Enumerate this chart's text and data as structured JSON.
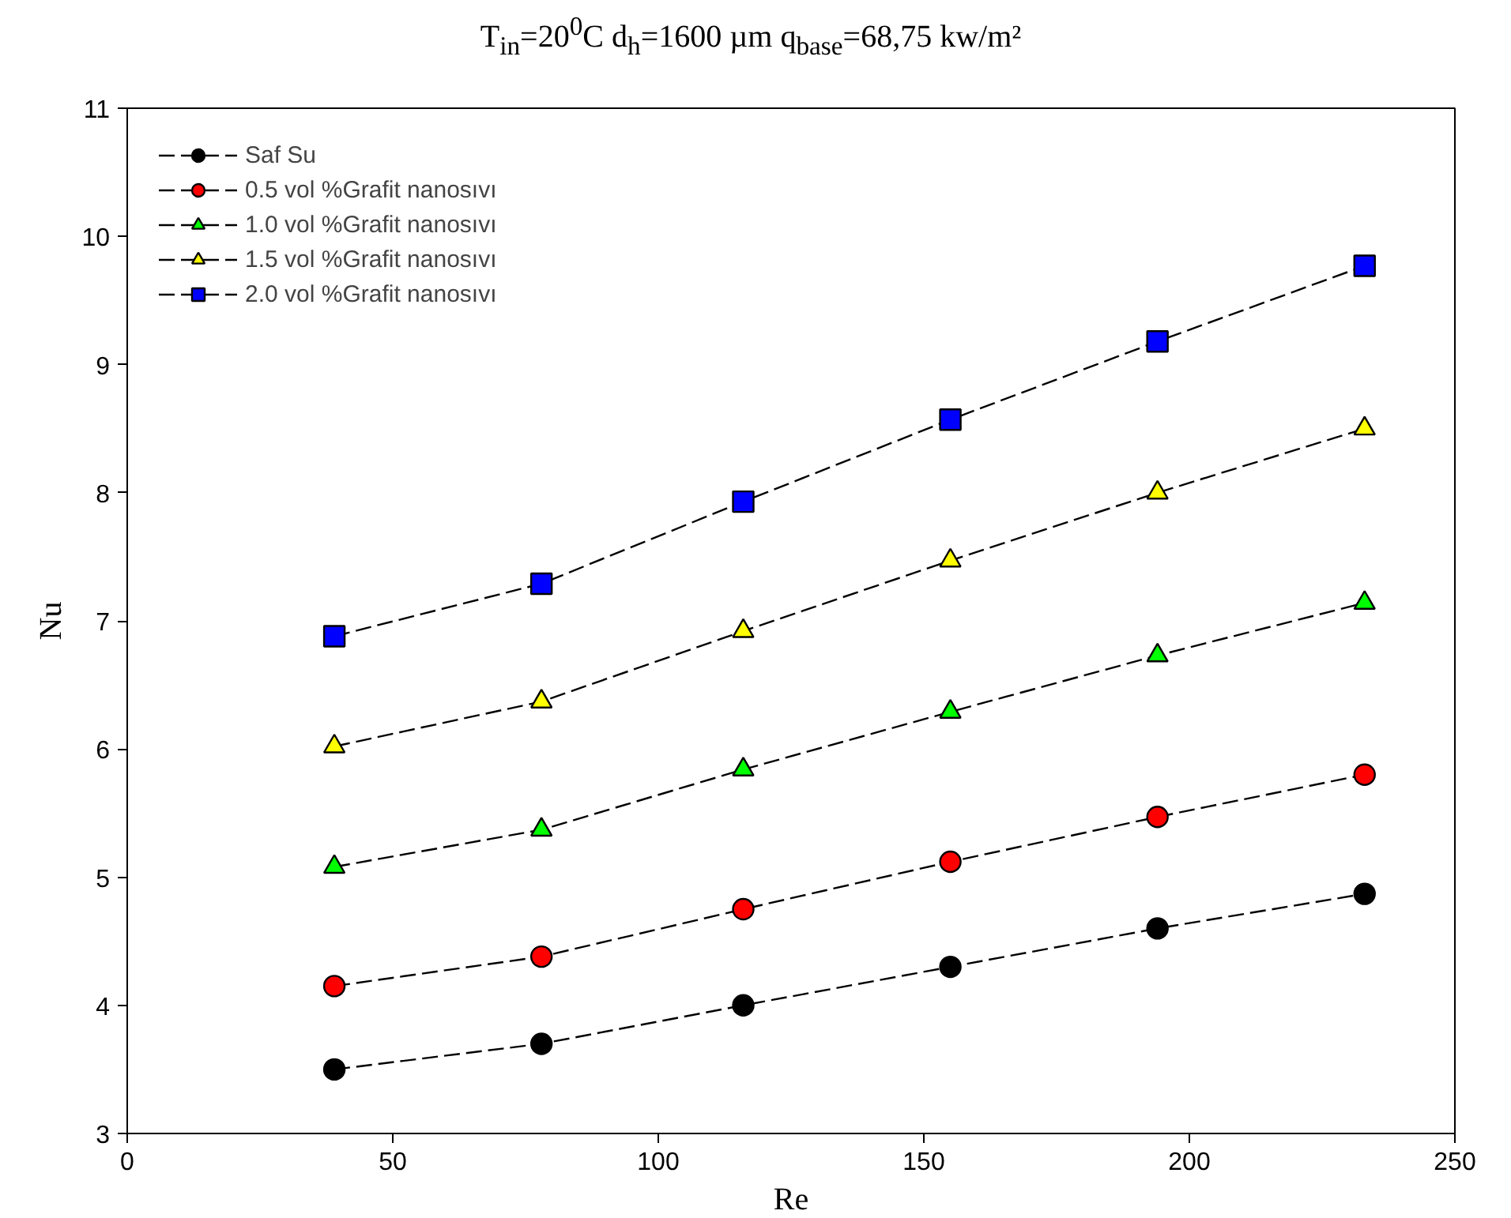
{
  "chart_data": {
    "type": "line",
    "title": "T$_{in}$=20$^{0}$C d$_{h}$=1600 µm q$_{base}$=68,75 kw/m²",
    "xlabel": "Re",
    "ylabel": "Nu",
    "x": [
      39,
      78,
      116,
      155,
      194,
      233
    ],
    "series": [
      {
        "name": "Saf Su",
        "color": "#000000",
        "marker": "circle",
        "values": [
          3.5,
          3.7,
          4.0,
          4.3,
          4.6,
          4.87
        ]
      },
      {
        "name": "0.5 vol %Grafit nanosıvı",
        "color": "#ff0000",
        "marker": "circle",
        "values": [
          4.15,
          4.38,
          4.75,
          5.12,
          5.47,
          5.8
        ]
      },
      {
        "name": "1.0 vol %Grafit nanosıvı",
        "color": "#00ff00",
        "marker": "triangle",
        "values": [
          5.08,
          5.37,
          5.84,
          6.29,
          6.73,
          7.14
        ]
      },
      {
        "name": "1.5 vol %Grafit nanosıvı",
        "color": "#ffff00",
        "marker": "triangle",
        "values": [
          6.02,
          6.37,
          6.92,
          7.47,
          8.0,
          8.5
        ]
      },
      {
        "name": "2.0 vol %Grafit nanosıvı",
        "color": "#0000ff",
        "marker": "square",
        "values": [
          6.88,
          7.29,
          7.93,
          8.57,
          9.18,
          9.77
        ]
      }
    ],
    "xlim": [
      0,
      250
    ],
    "xticks": [
      0,
      50,
      100,
      150,
      200,
      250
    ],
    "ylim": [
      3,
      11
    ],
    "yticks": [
      3,
      4,
      5,
      6,
      7,
      8,
      9,
      10,
      11
    ],
    "line_style": "dashed",
    "legend": "top left",
    "grid": false
  }
}
